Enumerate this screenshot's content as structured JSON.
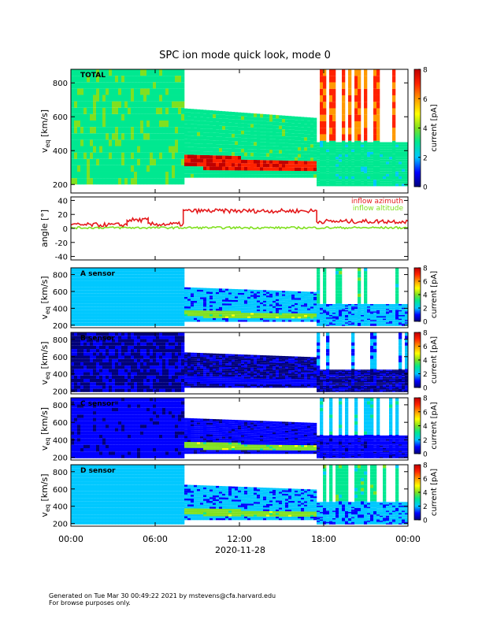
{
  "title": "SPC ion mode quick look, mode 0",
  "date_label": "2020-11-28",
  "footer": {
    "line1": "Generated on Tue Mar 30 00:49:22 2021 by mstevens@cfa.harvard.edu",
    "line2": "For browse purposes only."
  },
  "colors": {
    "inflow_azimuth": "#e41a1c",
    "inflow_altitude": "#80e020"
  },
  "chart_data": [
    {
      "type": "heatmap",
      "panel": "TOTAL",
      "label": "TOTAL",
      "ylabel_main": "v",
      "ylabel_sub": "eq",
      "ylabel_unit": "[km/s]",
      "ylim": [
        150,
        880
      ],
      "yticks": [
        200,
        400,
        600,
        800
      ],
      "xlim_hours": [
        0,
        24
      ],
      "colorbar": {
        "label": "current [pA]",
        "range": [
          0,
          8
        ],
        "ticks": [
          0,
          2,
          4,
          6,
          8
        ]
      },
      "intervals": [
        {
          "start": "00:00",
          "end": "08:00",
          "band_low_kms": 200,
          "band_high_kms": 880,
          "core_kms": 300,
          "level": "high, sporadic"
        },
        {
          "start": "08:00",
          "end": "17:30",
          "band_low_kms": 230,
          "band_high_kms": 650,
          "core_kms": 330,
          "level": "peak near core"
        },
        {
          "start": "17:30",
          "end": "24:00",
          "band_low_kms": 190,
          "band_high_kms": 450,
          "core_kms": 350,
          "level": "moderate, sporadic spikes"
        }
      ]
    },
    {
      "type": "line",
      "panel": "angle",
      "ylabel": "angle [°]",
      "ylim": [
        -45,
        45
      ],
      "yticks": [
        -40,
        -20,
        0,
        20,
        40
      ],
      "xlim_hours": [
        0,
        24
      ],
      "series": [
        {
          "name": "inflow azimuth",
          "segments": [
            {
              "start": "00:00",
              "end": "04:00",
              "value_deg": 5
            },
            {
              "start": "04:00",
              "end": "05:30",
              "value_deg": 12
            },
            {
              "start": "05:30",
              "end": "08:00",
              "value_deg": 6
            },
            {
              "start": "08:00",
              "end": "17:30",
              "value_deg": 25
            },
            {
              "start": "17:30",
              "end": "24:00",
              "value_deg": 10
            }
          ]
        },
        {
          "name": "inflow altitude",
          "segments": [
            {
              "start": "00:00",
              "end": "24:00",
              "value_deg": 1
            }
          ]
        }
      ]
    },
    {
      "type": "heatmap",
      "panel": "A sensor",
      "label": "A sensor",
      "ylabel_main": "v",
      "ylabel_sub": "eq",
      "ylabel_unit": "[km/s]",
      "ylim": [
        170,
        880
      ],
      "yticks": [
        200,
        400,
        600,
        800
      ],
      "xlim_hours": [
        0,
        24
      ],
      "colorbar": {
        "label": "current [pA]",
        "range": [
          0,
          8
        ],
        "ticks": [
          0,
          2,
          4,
          6,
          8
        ]
      }
    },
    {
      "type": "heatmap",
      "panel": "B sensor",
      "label": "B sensor",
      "ylabel_main": "v",
      "ylabel_sub": "eq",
      "ylabel_unit": "[km/s]",
      "ylim": [
        170,
        880
      ],
      "yticks": [
        200,
        400,
        600,
        800
      ],
      "xlim_hours": [
        0,
        24
      ],
      "colorbar": {
        "label": "current [pA]",
        "range": [
          0,
          8
        ],
        "ticks": [
          0,
          2,
          4,
          6,
          8
        ]
      }
    },
    {
      "type": "heatmap",
      "panel": "C sensor",
      "label": "C sensor",
      "ylabel_main": "v",
      "ylabel_sub": "eq",
      "ylabel_unit": "[km/s]",
      "ylim": [
        170,
        880
      ],
      "yticks": [
        200,
        400,
        600,
        800
      ],
      "xlim_hours": [
        0,
        24
      ],
      "colorbar": {
        "label": "current [pA]",
        "range": [
          0,
          8
        ],
        "ticks": [
          0,
          2,
          4,
          6,
          8
        ]
      }
    },
    {
      "type": "heatmap",
      "panel": "D sensor",
      "label": "D sensor",
      "ylabel_main": "v",
      "ylabel_sub": "eq",
      "ylabel_unit": "[km/s]",
      "ylim": [
        170,
        880
      ],
      "yticks": [
        200,
        400,
        600,
        800
      ],
      "xlim_hours": [
        0,
        24
      ],
      "colorbar": {
        "label": "current [pA]",
        "range": [
          0,
          8
        ],
        "ticks": [
          0,
          2,
          4,
          6,
          8
        ]
      }
    }
  ],
  "x_axis": {
    "ticks": [
      "00:00",
      "06:00",
      "12:00",
      "18:00",
      "00:00"
    ],
    "tick_hours": [
      0,
      6,
      12,
      18,
      24
    ]
  }
}
